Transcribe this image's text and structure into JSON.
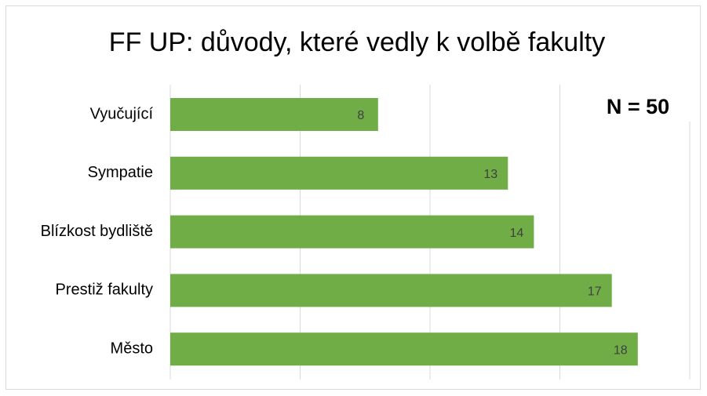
{
  "chart_data": {
    "type": "hbar",
    "title": "FF UP: důvody, které vedly k volbě fakulty",
    "annotation": "N = 50",
    "categories": [
      "Vyučující",
      "Sympatie",
      "Blízkost bydliště",
      "Prestiž fakulty",
      "Město"
    ],
    "values": [
      8,
      13,
      14,
      17,
      18
    ],
    "color": "#70ad47",
    "xlim": [
      0,
      20
    ],
    "xticks": [
      0,
      5,
      10,
      15,
      20
    ],
    "grid": true
  }
}
